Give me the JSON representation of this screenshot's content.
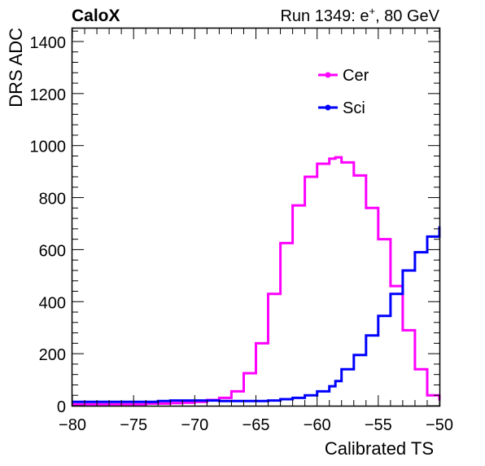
{
  "header": {
    "left_label": "CaloX",
    "right_label_prefix": "Run 1349: e",
    "right_label_sup": "+",
    "right_label_suffix": ", 80 GeV"
  },
  "chart_data": {
    "type": "step",
    "xlabel": "Calibrated TS",
    "ylabel": "DRS ADC",
    "xlim": [
      -80,
      -50
    ],
    "ylim": [
      0,
      1450
    ],
    "x_ticks": [
      -80,
      -75,
      -70,
      -65,
      -60,
      -55,
      -50
    ],
    "x_tick_labels": [
      "−80",
      "−75",
      "−70",
      "−65",
      "−60",
      "−55",
      "−50"
    ],
    "y_ticks": [
      0,
      200,
      400,
      600,
      800,
      1000,
      1200,
      1400
    ],
    "y_tick_labels": [
      "0",
      "200",
      "400",
      "600",
      "800",
      "1000",
      "1200",
      "1400"
    ],
    "bin_edges": [
      -80,
      -79,
      -78,
      -77,
      -76,
      -75,
      -74,
      -73,
      -72,
      -71,
      -70,
      -69,
      -68,
      -67,
      -66,
      -65,
      -64,
      -63,
      -62,
      -61,
      -60,
      -59,
      -58.5,
      -58,
      -57,
      -56,
      -55,
      -54,
      -53,
      -52,
      -51,
      -50
    ],
    "legend_position": "top-right",
    "series": [
      {
        "name": "Cer",
        "color": "#ff00ff",
        "values": [
          5,
          5,
          5,
          5,
          5,
          5,
          8,
          8,
          10,
          12,
          15,
          22,
          30,
          55,
          125,
          240,
          430,
          625,
          770,
          880,
          930,
          950,
          955,
          935,
          885,
          760,
          640,
          460,
          290,
          140,
          40
        ]
      },
      {
        "name": "Sci",
        "color": "#0000ff",
        "values": [
          15,
          15,
          15,
          15,
          15,
          15,
          15,
          18,
          20,
          20,
          20,
          20,
          18,
          18,
          18,
          18,
          20,
          25,
          30,
          40,
          55,
          75,
          95,
          140,
          195,
          270,
          345,
          430,
          520,
          590,
          650
        ]
      }
    ],
    "final_edge_values": {
      "Cer": 20,
      "Sci": 690
    }
  }
}
